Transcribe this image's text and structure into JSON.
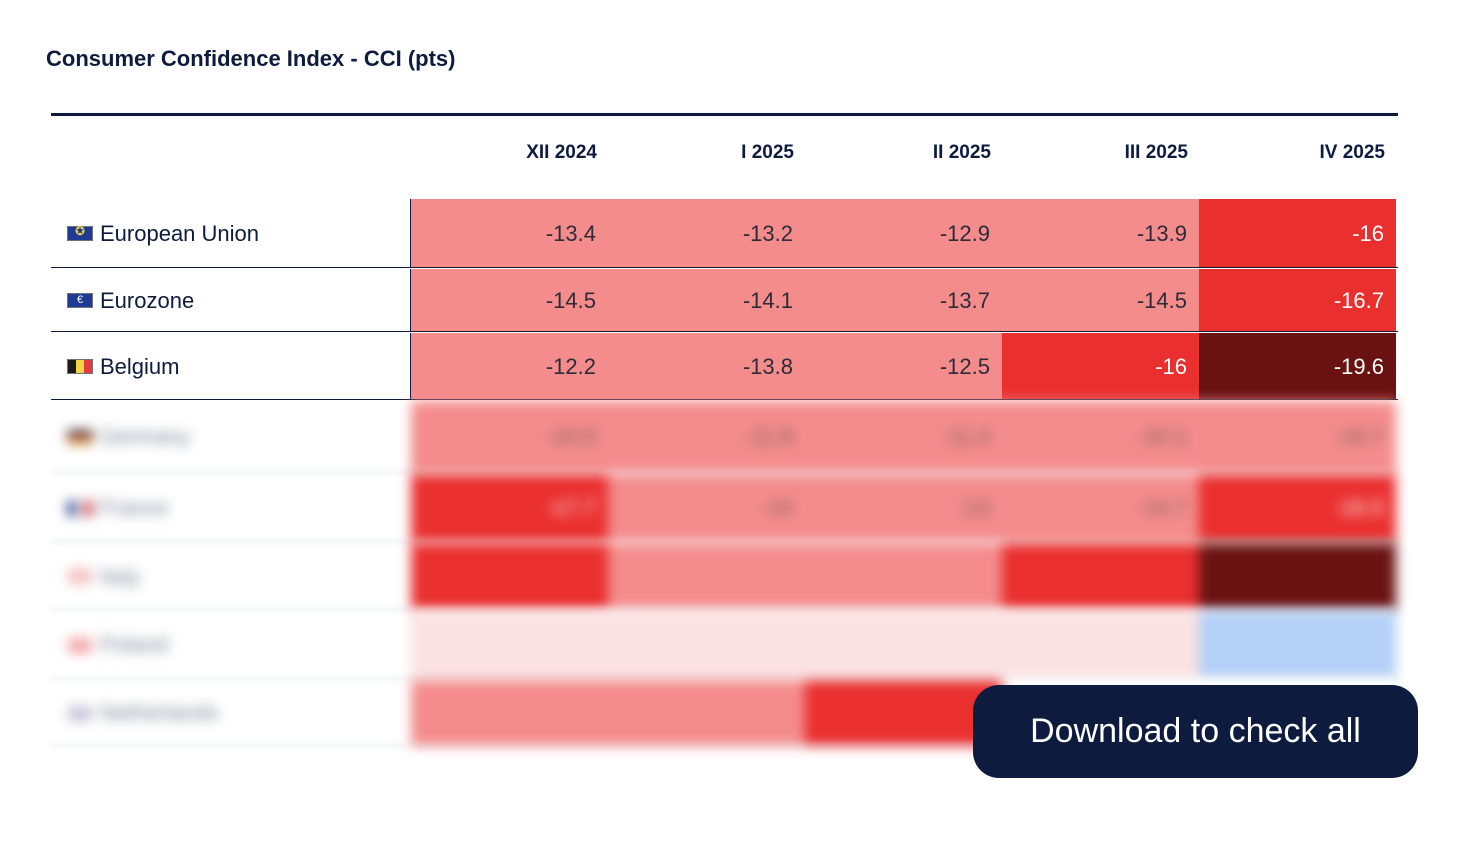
{
  "title": "Consumer Confidence Index - CCI (pts)",
  "columns": [
    "XII 2024",
    "I 2025",
    "II 2025",
    "III 2025",
    "IV 2025"
  ],
  "rows": [
    {
      "name": "European Union",
      "flag": "eu-flag",
      "values": [
        "-13.4",
        "-13.2",
        "-12.9",
        "-13.9",
        "-16"
      ],
      "levels": [
        "light",
        "light",
        "light",
        "light",
        "mid"
      ]
    },
    {
      "name": "Eurozone",
      "flag": "eurozone-flag",
      "values": [
        "-14.5",
        "-14.1",
        "-13.7",
        "-14.5",
        "-16.7"
      ],
      "levels": [
        "light",
        "light",
        "light",
        "light",
        "mid"
      ]
    },
    {
      "name": "Belgium",
      "flag": "belgium-flag",
      "values": [
        "-12.2",
        "-13.8",
        "-12.5",
        "-16",
        "-19.6"
      ],
      "levels": [
        "light",
        "light",
        "light",
        "mid",
        "dark"
      ]
    },
    {
      "name": "Germany",
      "flag": "germany-flag",
      "values": [
        "-10.5",
        "-11.8",
        "-11.4",
        "-10.1",
        "-10.7"
      ],
      "levels": [
        "light",
        "light",
        "light",
        "light",
        "light"
      ],
      "blurred": true
    },
    {
      "name": "France",
      "flag": "france-flag",
      "values": [
        "-17.7",
        "-14",
        "-13",
        "-14.7",
        "-16.5"
      ],
      "levels": [
        "mid",
        "light",
        "light",
        "light",
        "mid"
      ],
      "blurred": true
    },
    {
      "name": "Italy",
      "flag": "italy-flag",
      "values": [
        "",
        "",
        "",
        "",
        ""
      ],
      "levels": [
        "mid",
        "light",
        "light",
        "mid",
        "dark"
      ],
      "blurred": true
    },
    {
      "name": "Poland",
      "flag": "poland-flag",
      "values": [
        "",
        "",
        "",
        "",
        ""
      ],
      "levels": [
        "pale",
        "pale",
        "pale",
        "pale",
        "blue"
      ],
      "blurred": true
    },
    {
      "name": "Netherlands",
      "flag": "netherlands-flag",
      "values": [
        "",
        "",
        "",
        "",
        ""
      ],
      "levels": [
        "light",
        "light",
        "mid",
        "white",
        "white"
      ],
      "blurred": true
    }
  ],
  "colors": {
    "light": "#f48c8c",
    "mid": "#ea2f2f",
    "dark": "#6a1212",
    "pale": "#fbe2e2",
    "blue": "#b3d0f7",
    "navy": "#0d1b3e"
  },
  "download_label": "Download to check all"
}
